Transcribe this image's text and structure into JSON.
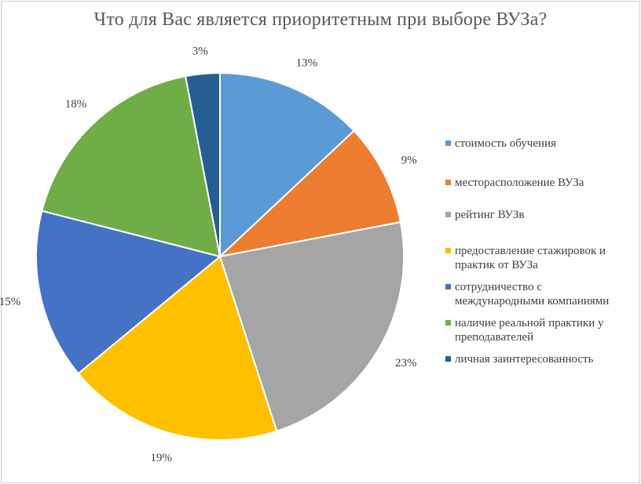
{
  "chart_data": {
    "type": "pie",
    "title": "Что для Вас является приоритетным при выборе ВУЗа?",
    "legend_position": "right",
    "slices": [
      {
        "label": "стоимость обучения",
        "value": 13,
        "value_label": "13%",
        "color": "#5B9BD5"
      },
      {
        "label": "месторасположение ВУЗа",
        "value": 9,
        "value_label": "9%",
        "color": "#ED7D31"
      },
      {
        "label": "рейтинг ВУЗв",
        "value": 23,
        "value_label": "23%",
        "color": "#A5A5A5"
      },
      {
        "label": "предоставление стажировок и практик от ВУЗа",
        "value": 19,
        "value_label": "19%",
        "color": "#FFC000"
      },
      {
        "label": "сотрудничество с международными компаниями",
        "value": 15,
        "value_label": "15%",
        "color": "#4472C4"
      },
      {
        "label": "наличие реальной практики у преподавателей",
        "value": 18,
        "value_label": "18%",
        "color": "#70AD47"
      },
      {
        "label": "личная заинтересованность",
        "value": 3,
        "value_label": "3%",
        "color": "#255E91"
      }
    ]
  }
}
